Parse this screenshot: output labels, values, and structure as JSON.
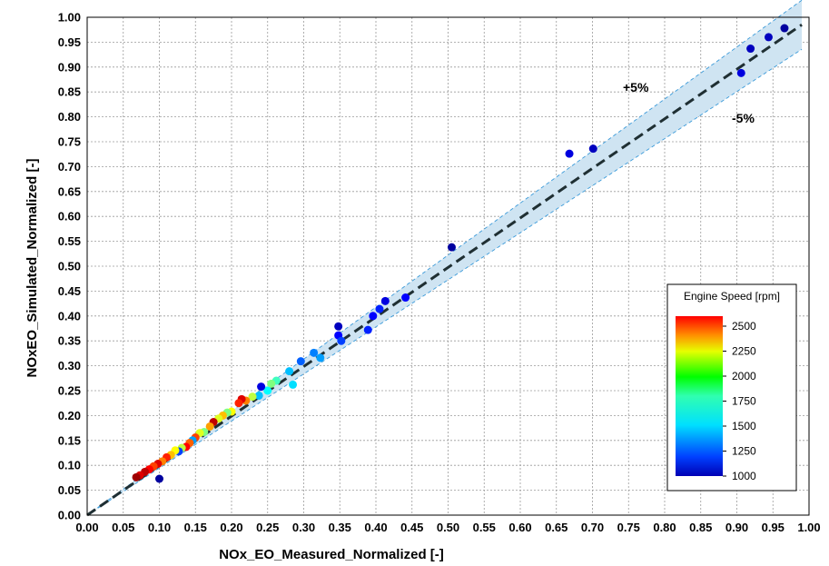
{
  "chart_data": {
    "type": "scatter",
    "xlabel": "NOx_EO_Measured_Normalized [-]",
    "ylabel": "NOxEO_Simulated_Normalized [-]",
    "xlim": [
      0,
      1
    ],
    "ylim": [
      0,
      1
    ],
    "x_ticks": [
      "0.00",
      "0.05",
      "0.10",
      "0.15",
      "0.20",
      "0.25",
      "0.30",
      "0.35",
      "0.40",
      "0.45",
      "0.50",
      "0.55",
      "0.60",
      "0.65",
      "0.70",
      "0.75",
      "0.80",
      "0.85",
      "0.90",
      "0.95",
      "1.00"
    ],
    "y_ticks": [
      "0.00",
      "0.05",
      "0.10",
      "0.15",
      "0.20",
      "0.25",
      "0.30",
      "0.35",
      "0.40",
      "0.45",
      "0.50",
      "0.55",
      "0.60",
      "0.65",
      "0.70",
      "0.75",
      "0.80",
      "0.85",
      "0.90",
      "0.95",
      "1.00"
    ],
    "grid": true,
    "reference_line": {
      "style": "dashed",
      "color": "#1f2f33",
      "x": [
        0,
        0.99
      ],
      "y": [
        0,
        0.985
      ]
    },
    "tolerance_band": {
      "upper_pct": 5,
      "lower_pct": 5,
      "fill": "#cfe4f2",
      "edge": "#3a9ad9",
      "upper_label": "+5%",
      "lower_label": "-5%"
    },
    "colorbar": {
      "title": "Engine Speed [rpm]",
      "ticks": [
        "2500",
        "2250",
        "2000",
        "1750",
        "1500",
        "1250",
        "1000"
      ],
      "range": [
        1000,
        2600
      ],
      "placement": "bottom-right"
    },
    "points": [
      {
        "x": 0.966,
        "y": 0.978,
        "rpm": 1050
      },
      {
        "x": 0.944,
        "y": 0.96,
        "rpm": 1100
      },
      {
        "x": 0.919,
        "y": 0.937,
        "rpm": 1100
      },
      {
        "x": 0.906,
        "y": 0.888,
        "rpm": 1150
      },
      {
        "x": 0.701,
        "y": 0.736,
        "rpm": 1100
      },
      {
        "x": 0.668,
        "y": 0.726,
        "rpm": 1150
      },
      {
        "x": 0.505,
        "y": 0.538,
        "rpm": 1050
      },
      {
        "x": 0.441,
        "y": 0.437,
        "rpm": 1200
      },
      {
        "x": 0.413,
        "y": 0.43,
        "rpm": 1150
      },
      {
        "x": 0.405,
        "y": 0.414,
        "rpm": 1250
      },
      {
        "x": 0.396,
        "y": 0.4,
        "rpm": 1200
      },
      {
        "x": 0.389,
        "y": 0.372,
        "rpm": 1250
      },
      {
        "x": 0.348,
        "y": 0.379,
        "rpm": 1100
      },
      {
        "x": 0.348,
        "y": 0.361,
        "rpm": 1200
      },
      {
        "x": 0.352,
        "y": 0.35,
        "rpm": 1300
      },
      {
        "x": 0.323,
        "y": 0.316,
        "rpm": 1450
      },
      {
        "x": 0.314,
        "y": 0.326,
        "rpm": 1400
      },
      {
        "x": 0.296,
        "y": 0.309,
        "rpm": 1350
      },
      {
        "x": 0.285,
        "y": 0.262,
        "rpm": 1550
      },
      {
        "x": 0.28,
        "y": 0.289,
        "rpm": 1500
      },
      {
        "x": 0.262,
        "y": 0.27,
        "rpm": 1700
      },
      {
        "x": 0.255,
        "y": 0.264,
        "rpm": 1800
      },
      {
        "x": 0.25,
        "y": 0.25,
        "rpm": 1600
      },
      {
        "x": 0.241,
        "y": 0.258,
        "rpm": 1150
      },
      {
        "x": 0.238,
        "y": 0.24,
        "rpm": 1500
      },
      {
        "x": 0.229,
        "y": 0.238,
        "rpm": 1900
      },
      {
        "x": 0.22,
        "y": 0.23,
        "rpm": 2200
      },
      {
        "x": 0.214,
        "y": 0.233,
        "rpm": 2450
      },
      {
        "x": 0.21,
        "y": 0.225,
        "rpm": 2350
      },
      {
        "x": 0.2,
        "y": 0.208,
        "rpm": 2000
      },
      {
        "x": 0.194,
        "y": 0.206,
        "rpm": 1800
      },
      {
        "x": 0.188,
        "y": 0.2,
        "rpm": 2100
      },
      {
        "x": 0.182,
        "y": 0.194,
        "rpm": 1950
      },
      {
        "x": 0.175,
        "y": 0.187,
        "rpm": 2500
      },
      {
        "x": 0.17,
        "y": 0.178,
        "rpm": 2150
      },
      {
        "x": 0.162,
        "y": 0.167,
        "rpm": 1800
      },
      {
        "x": 0.156,
        "y": 0.165,
        "rpm": 1950
      },
      {
        "x": 0.15,
        "y": 0.156,
        "rpm": 2300
      },
      {
        "x": 0.146,
        "y": 0.15,
        "rpm": 1450
      },
      {
        "x": 0.142,
        "y": 0.145,
        "rpm": 2250
      },
      {
        "x": 0.137,
        "y": 0.137,
        "rpm": 2400
      },
      {
        "x": 0.131,
        "y": 0.135,
        "rpm": 1900
      },
      {
        "x": 0.127,
        "y": 0.128,
        "rpm": 1300
      },
      {
        "x": 0.122,
        "y": 0.13,
        "rpm": 2000
      },
      {
        "x": 0.116,
        "y": 0.121,
        "rpm": 2100
      },
      {
        "x": 0.11,
        "y": 0.116,
        "rpm": 2350
      },
      {
        "x": 0.104,
        "y": 0.108,
        "rpm": 2200
      },
      {
        "x": 0.098,
        "y": 0.103,
        "rpm": 2450
      },
      {
        "x": 0.092,
        "y": 0.098,
        "rpm": 2300
      },
      {
        "x": 0.086,
        "y": 0.092,
        "rpm": 2400
      },
      {
        "x": 0.08,
        "y": 0.087,
        "rpm": 2500
      },
      {
        "x": 0.073,
        "y": 0.08,
        "rpm": 2450
      },
      {
        "x": 0.068,
        "y": 0.076,
        "rpm": 2550
      },
      {
        "x": 0.1,
        "y": 0.073,
        "rpm": 1050
      }
    ]
  }
}
